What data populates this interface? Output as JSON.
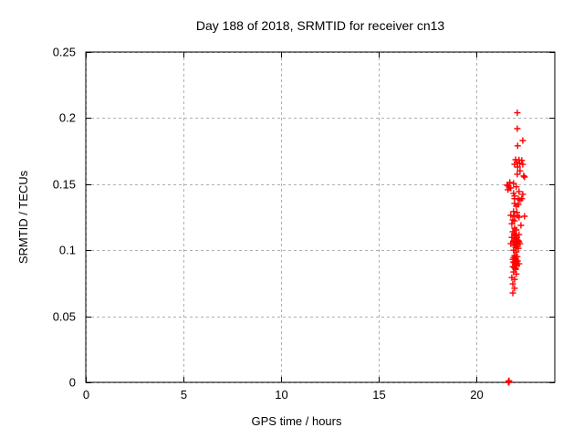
{
  "chart_data": {
    "type": "scatter",
    "title": "Day 188 of 2018, SRMTID for receiver cn13",
    "xlabel": "GPS time / hours",
    "ylabel": "SRMTID / TECUs",
    "xlim": [
      0,
      24
    ],
    "ylim": [
      0,
      0.25
    ],
    "xticks": {
      "values": [
        0,
        5,
        10,
        15,
        20
      ],
      "labels": [
        "0",
        "5",
        "10",
        "15",
        "20"
      ]
    },
    "yticks": {
      "values": [
        0,
        0.05,
        0.1,
        0.15,
        0.2,
        0.25
      ],
      "labels": [
        "0",
        "0.05",
        "0.1",
        "0.15",
        "0.2",
        "0.25"
      ]
    },
    "grid": true,
    "legend": "none",
    "marker": {
      "shape": "plus",
      "color": "#ff0000",
      "size": 7
    },
    "series": [
      {
        "name": "SRMTID",
        "points": [
          [
            22.08,
            0.204
          ],
          [
            22.08,
            0.192
          ],
          [
            22.36,
            0.183
          ],
          [
            22.1,
            0.179
          ],
          [
            21.99,
            0.1685
          ],
          [
            22.17,
            0.1683
          ],
          [
            22.31,
            0.168
          ],
          [
            22.06,
            0.1665
          ],
          [
            22.2,
            0.1658
          ],
          [
            21.94,
            0.165
          ],
          [
            22.36,
            0.165
          ],
          [
            22.1,
            0.163
          ],
          [
            22.22,
            0.16
          ],
          [
            22.08,
            0.1575
          ],
          [
            22.41,
            0.1562
          ],
          [
            22.45,
            0.1554
          ],
          [
            21.7,
            0.1513
          ],
          [
            21.89,
            0.1506
          ],
          [
            21.56,
            0.1493
          ],
          [
            21.62,
            0.1486
          ],
          [
            22.03,
            0.148
          ],
          [
            21.67,
            0.1472
          ],
          [
            21.75,
            0.147
          ],
          [
            21.6,
            0.1458
          ],
          [
            22.17,
            0.1444
          ],
          [
            21.89,
            0.143
          ],
          [
            22.36,
            0.1423
          ],
          [
            21.94,
            0.141
          ],
          [
            21.94,
            0.139
          ],
          [
            22.13,
            0.1388
          ],
          [
            22.31,
            0.139
          ],
          [
            22.22,
            0.1379
          ],
          [
            21.94,
            0.1354
          ],
          [
            22.13,
            0.1347
          ],
          [
            22.03,
            0.1333
          ],
          [
            21.89,
            0.1293
          ],
          [
            22.06,
            0.1286
          ],
          [
            21.75,
            0.1264
          ],
          [
            21.94,
            0.1257
          ],
          [
            22.08,
            0.1262
          ],
          [
            22.45,
            0.1257
          ],
          [
            22.17,
            0.125
          ],
          [
            21.85,
            0.123
          ],
          [
            21.94,
            0.1222
          ],
          [
            21.8,
            0.12
          ],
          [
            22.27,
            0.1188
          ],
          [
            21.94,
            0.1167
          ],
          [
            22.03,
            0.1153
          ],
          [
            21.85,
            0.114
          ],
          [
            21.92,
            0.1125
          ],
          [
            22.17,
            0.1118
          ],
          [
            21.94,
            0.1111
          ],
          [
            22.0,
            0.1108
          ],
          [
            21.8,
            0.1097
          ],
          [
            22.06,
            0.1095
          ],
          [
            21.97,
            0.109
          ],
          [
            22.03,
            0.1083
          ],
          [
            22.1,
            0.1076
          ],
          [
            21.89,
            0.107
          ],
          [
            22.14,
            0.1069
          ],
          [
            22.17,
            0.1063
          ],
          [
            21.87,
            0.1062
          ],
          [
            22.01,
            0.1056
          ],
          [
            21.75,
            0.1049
          ],
          [
            21.94,
            0.1049
          ],
          [
            22.22,
            0.1049
          ],
          [
            22.08,
            0.1046
          ],
          [
            21.99,
            0.1042
          ],
          [
            21.92,
            0.1035
          ],
          [
            22.05,
            0.1028
          ],
          [
            21.99,
            0.1021
          ],
          [
            22.13,
            0.1014
          ],
          [
            21.89,
            0.1
          ],
          [
            22.03,
            0.0987
          ],
          [
            21.94,
            0.0959
          ],
          [
            22.08,
            0.0952
          ],
          [
            21.9,
            0.0945
          ],
          [
            22.0,
            0.0938
          ],
          [
            21.85,
            0.0931
          ],
          [
            22.03,
            0.0925
          ],
          [
            22.1,
            0.0918
          ],
          [
            21.88,
            0.0911
          ],
          [
            21.94,
            0.0904
          ],
          [
            22.17,
            0.0897
          ],
          [
            21.97,
            0.089
          ],
          [
            22.06,
            0.0883
          ],
          [
            21.85,
            0.0876
          ],
          [
            21.92,
            0.0869
          ],
          [
            21.99,
            0.0862
          ],
          [
            22.0,
            0.0855
          ],
          [
            21.89,
            0.0835
          ],
          [
            22.03,
            0.082
          ],
          [
            21.8,
            0.0793
          ],
          [
            21.94,
            0.0779
          ],
          [
            21.85,
            0.0745
          ],
          [
            21.94,
            0.0712
          ],
          [
            21.85,
            0.0676
          ],
          [
            21.63,
            0.0
          ],
          [
            21.66,
            0.0
          ],
          [
            21.64,
            0.0008
          ],
          [
            21.66,
            0.0012
          ]
        ]
      }
    ]
  },
  "colors": {
    "background": "#ffffff",
    "border": "#000000",
    "grid": "#b0b0b0",
    "marker": "#ff0000",
    "text": "#000000"
  }
}
